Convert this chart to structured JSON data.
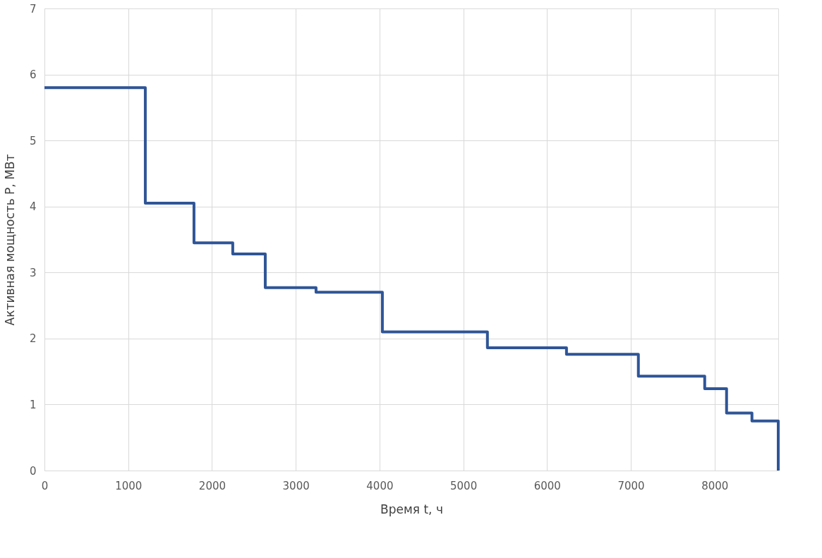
{
  "chart_data": {
    "type": "step",
    "xlabel": "Время t, ч",
    "ylabel": "Активная мощность P, МВт",
    "x": [
      0,
      1204,
      1785,
      2248,
      2636,
      3242,
      4034,
      5288,
      6232,
      7090,
      7882,
      8143,
      8446,
      8760
    ],
    "series": [
      {
        "color": "#2f5597",
        "values": [
          5.8,
          4.05,
          3.45,
          3.28,
          2.77,
          2.7,
          2.1,
          1.86,
          1.76,
          1.43,
          1.24,
          0.87,
          0.75,
          0
        ]
      }
    ],
    "xlim": [
      0,
      8760
    ],
    "xticks": [
      0,
      1000,
      2000,
      3000,
      4000,
      5000,
      6000,
      7000,
      8000
    ],
    "ylim": [
      0,
      7
    ],
    "yticks": [
      0,
      1,
      2,
      3,
      4,
      5,
      6,
      7
    ],
    "grid": true,
    "marker": "none",
    "line_style": "solid"
  }
}
